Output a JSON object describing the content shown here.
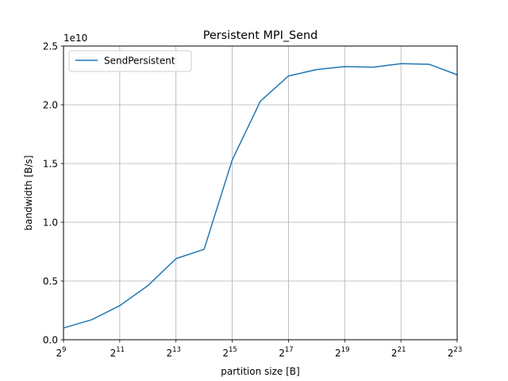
{
  "chart_data": {
    "type": "line",
    "title": "Persistent MPI_Send",
    "xlabel": "partition size [B]",
    "ylabel": "bandwidth [B/s]",
    "y_scale_note": "1e10",
    "x_scale": "log2",
    "x_tick_base": "2",
    "x_tick_exponents": [
      "9",
      "11",
      "13",
      "15",
      "17",
      "19",
      "21",
      "23"
    ],
    "y_ticks": [
      "0.0",
      "0.5",
      "1.0",
      "1.5",
      "2.0",
      "2.5"
    ],
    "xlim": [
      512,
      8388608
    ],
    "ylim": [
      0,
      25000000000
    ],
    "grid": true,
    "legend_position": "top-left",
    "series": [
      {
        "name": "SendPersistent",
        "color": "#1f77b4",
        "x": [
          512,
          1024,
          2048,
          4096,
          8192,
          16384,
          32768,
          65536,
          131072,
          262144,
          524288,
          1048576,
          2097152,
          4194304,
          8388608
        ],
        "y": [
          1000000000,
          1700000000,
          2900000000,
          4600000000,
          6900000000,
          7700000000,
          15300000000,
          20300000000,
          22450000000,
          23000000000,
          23250000000,
          23200000000,
          23500000000,
          23450000000,
          22550000000
        ]
      }
    ]
  }
}
